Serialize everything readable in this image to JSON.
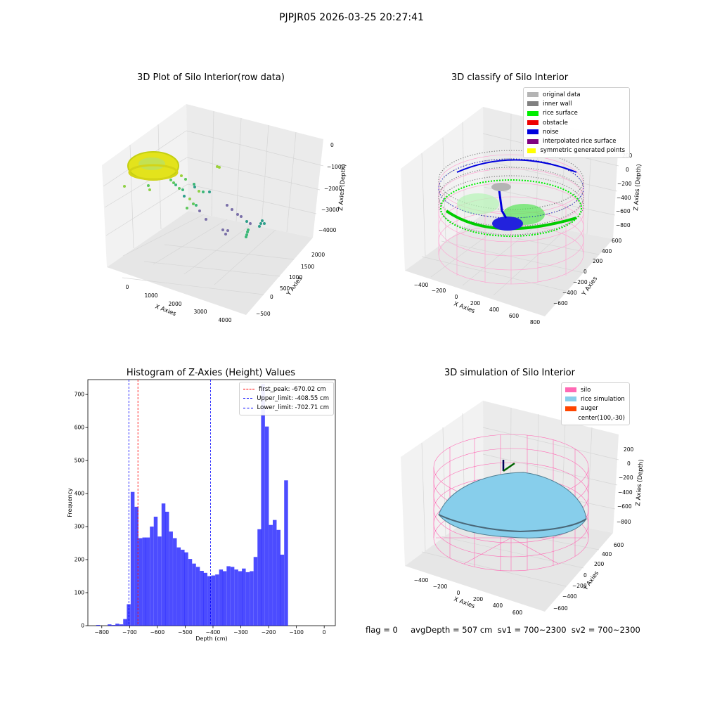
{
  "figure_title": "PJPJR05 2026-03-25 20:27:41",
  "panels": {
    "raw": {
      "title": "3D Plot of Silo Interior(row data)",
      "x_label": "X Axies",
      "y_label": "Y Axies",
      "z_label": "Z Axies (Depth)",
      "x_ticks": [
        "0",
        "1000",
        "2000",
        "3000",
        "4000"
      ],
      "y_ticks": [
        "−500",
        "0",
        "500",
        "1000",
        "1500",
        "2000"
      ],
      "z_ticks": [
        "0",
        "−1000",
        "−2000",
        "−3000",
        "−4000"
      ],
      "colors": {
        "ring": "#e6e61a",
        "ring_edge": "#c8d20a",
        "points": [
          "#3cb878",
          "#5ec85c",
          "#8fd146",
          "#2e9e8a",
          "#7a6fa8",
          "#9bd13a"
        ]
      }
    },
    "classify": {
      "title": "3D classify of Silo Interior",
      "x_label": "X Axies",
      "y_label": "Y Axies",
      "z_label": "Z Axies (Depth)",
      "x_ticks": [
        "−400",
        "−200",
        "0",
        "200",
        "400",
        "600",
        "800"
      ],
      "y_ticks": [
        "−600",
        "−400",
        "−200",
        "0",
        "200",
        "400",
        "600"
      ],
      "z_ticks": [
        "200",
        "0",
        "−200",
        "−400",
        "−600",
        "−800"
      ],
      "legend": [
        {
          "label": "original data",
          "color": "#b4b4b4"
        },
        {
          "label": "inner wall",
          "color": "#808080"
        },
        {
          "label": "rice surface",
          "color": "#00ee00"
        },
        {
          "label": "obstacle",
          "color": "#ee0000"
        },
        {
          "label": "noise",
          "color": "#0000dd"
        },
        {
          "label": "interpolated rice surface",
          "color": "#800080"
        },
        {
          "label": "symmetric generated points",
          "color": "#ffff00"
        }
      ]
    },
    "histogram": {
      "title": "Histogram of Z-Axies (Height) Values",
      "x_label": "Depth (cm)",
      "y_label": "Frequency",
      "x_ticks": [
        "−800",
        "−700",
        "−600",
        "−500",
        "−400",
        "−300",
        "−200",
        "−100",
        "0"
      ],
      "y_ticks": [
        "0",
        "100",
        "200",
        "300",
        "400",
        "500",
        "600",
        "700"
      ],
      "legend": [
        {
          "label": "first_peak: -670.02 cm",
          "color": "#ff0000"
        },
        {
          "label": "Upper_limit: -408.55 cm",
          "color": "#0000ff"
        },
        {
          "label": "Lower_limit: -702.71 cm",
          "color": "#0000ff"
        }
      ]
    },
    "simulation": {
      "title": "3D simulation of Silo Interior",
      "x_label": "X Axies",
      "y_label": "Y Axies",
      "z_label": "Z Axies (Depth)",
      "x_ticks": [
        "−400",
        "−200",
        "0",
        "200",
        "400",
        "600"
      ],
      "y_ticks": [
        "−600",
        "−400",
        "−200",
        "0",
        "200",
        "400",
        "600"
      ],
      "z_ticks": [
        "200",
        "0",
        "−200",
        "−400",
        "−600",
        "−800"
      ],
      "legend": [
        {
          "label": "silo",
          "color": "#ff69b4"
        },
        {
          "label": "rice simulation",
          "color": "#87ceeb"
        },
        {
          "label": "auger",
          "color": "#ff4500"
        },
        {
          "label": "center(100,-30)",
          "color": ""
        }
      ]
    }
  },
  "footer": "flag = 0     avgDepth = 507 cm  sv1 = 700~2300  sv2 = 700~2300",
  "chart_data": [
    {
      "type": "scatter",
      "title": "3D Plot of Silo Interior(row data)",
      "xlabel": "X Axies",
      "ylabel": "Y Axies",
      "zlabel": "Z Axies (Depth)",
      "xlim": [
        -500,
        4500
      ],
      "ylim": [
        -600,
        2200
      ],
      "zlim": [
        -4500,
        200
      ],
      "grid": true
    },
    {
      "type": "scatter",
      "title": "3D classify of Silo Interior",
      "xlabel": "X Axies",
      "ylabel": "Y Axies",
      "zlabel": "Z Axies (Depth)",
      "series": [
        {
          "name": "original data"
        },
        {
          "name": "inner wall"
        },
        {
          "name": "rice surface"
        },
        {
          "name": "obstacle"
        },
        {
          "name": "noise"
        },
        {
          "name": "interpolated rice surface"
        },
        {
          "name": "symmetric generated points"
        }
      ],
      "legend_position": "top-right",
      "grid": true
    },
    {
      "type": "bar",
      "title": "Histogram of Z-Axies (Height) Values",
      "xlabel": "Depth (cm)",
      "ylabel": "Frequency",
      "xlim": [
        -850,
        40
      ],
      "ylim": [
        0,
        745
      ],
      "bin_width": 13.8,
      "bin_start": [
        -820,
        -806,
        -792,
        -779,
        -765,
        -751,
        -737,
        -723,
        -710,
        -696,
        -682,
        -668,
        -654,
        -641,
        -627,
        -613,
        -599,
        -585,
        -572,
        -558,
        -544,
        -530,
        -516,
        -503,
        -489,
        -475,
        -461,
        -447,
        -434,
        -420,
        -406,
        -392,
        -378,
        -365,
        -351,
        -337,
        -323,
        -309,
        -296,
        -282,
        -268,
        -254,
        -240,
        -227,
        -213,
        -199,
        -185,
        -171,
        -158,
        -144,
        -130,
        -116,
        -102,
        -89,
        -75,
        -61,
        -47,
        -33,
        -20
      ],
      "values": [
        2,
        0,
        0,
        4,
        2,
        6,
        4,
        20,
        65,
        405,
        360,
        265,
        267,
        267,
        300,
        330,
        270,
        370,
        345,
        285,
        265,
        237,
        230,
        222,
        202,
        188,
        178,
        166,
        160,
        150,
        152,
        155,
        170,
        165,
        180,
        178,
        170,
        165,
        173,
        162,
        165,
        208,
        292,
        732,
        603,
        305,
        320,
        290,
        215,
        440,
        0,
        0,
        0,
        0,
        0,
        0,
        0,
        0,
        0
      ],
      "vlines": [
        {
          "name": "first_peak: -670.02 cm",
          "x": -670.02,
          "color": "#ff0000"
        },
        {
          "name": "Upper_limit: -408.55 cm",
          "x": -408.55,
          "color": "#0000ff"
        },
        {
          "name": "Lower_limit: -702.71 cm",
          "x": -702.71,
          "color": "#0000ff"
        }
      ],
      "legend_position": "top-right",
      "grid": false
    },
    {
      "type": "scatter",
      "title": "3D simulation of Silo Interior",
      "xlabel": "X Axies",
      "ylabel": "Y Axies",
      "zlabel": "Z Axies (Depth)",
      "series": [
        {
          "name": "silo"
        },
        {
          "name": "rice simulation"
        },
        {
          "name": "auger"
        },
        {
          "name": "center(100,-30)"
        }
      ],
      "legend_position": "top-right",
      "grid": true
    }
  ]
}
